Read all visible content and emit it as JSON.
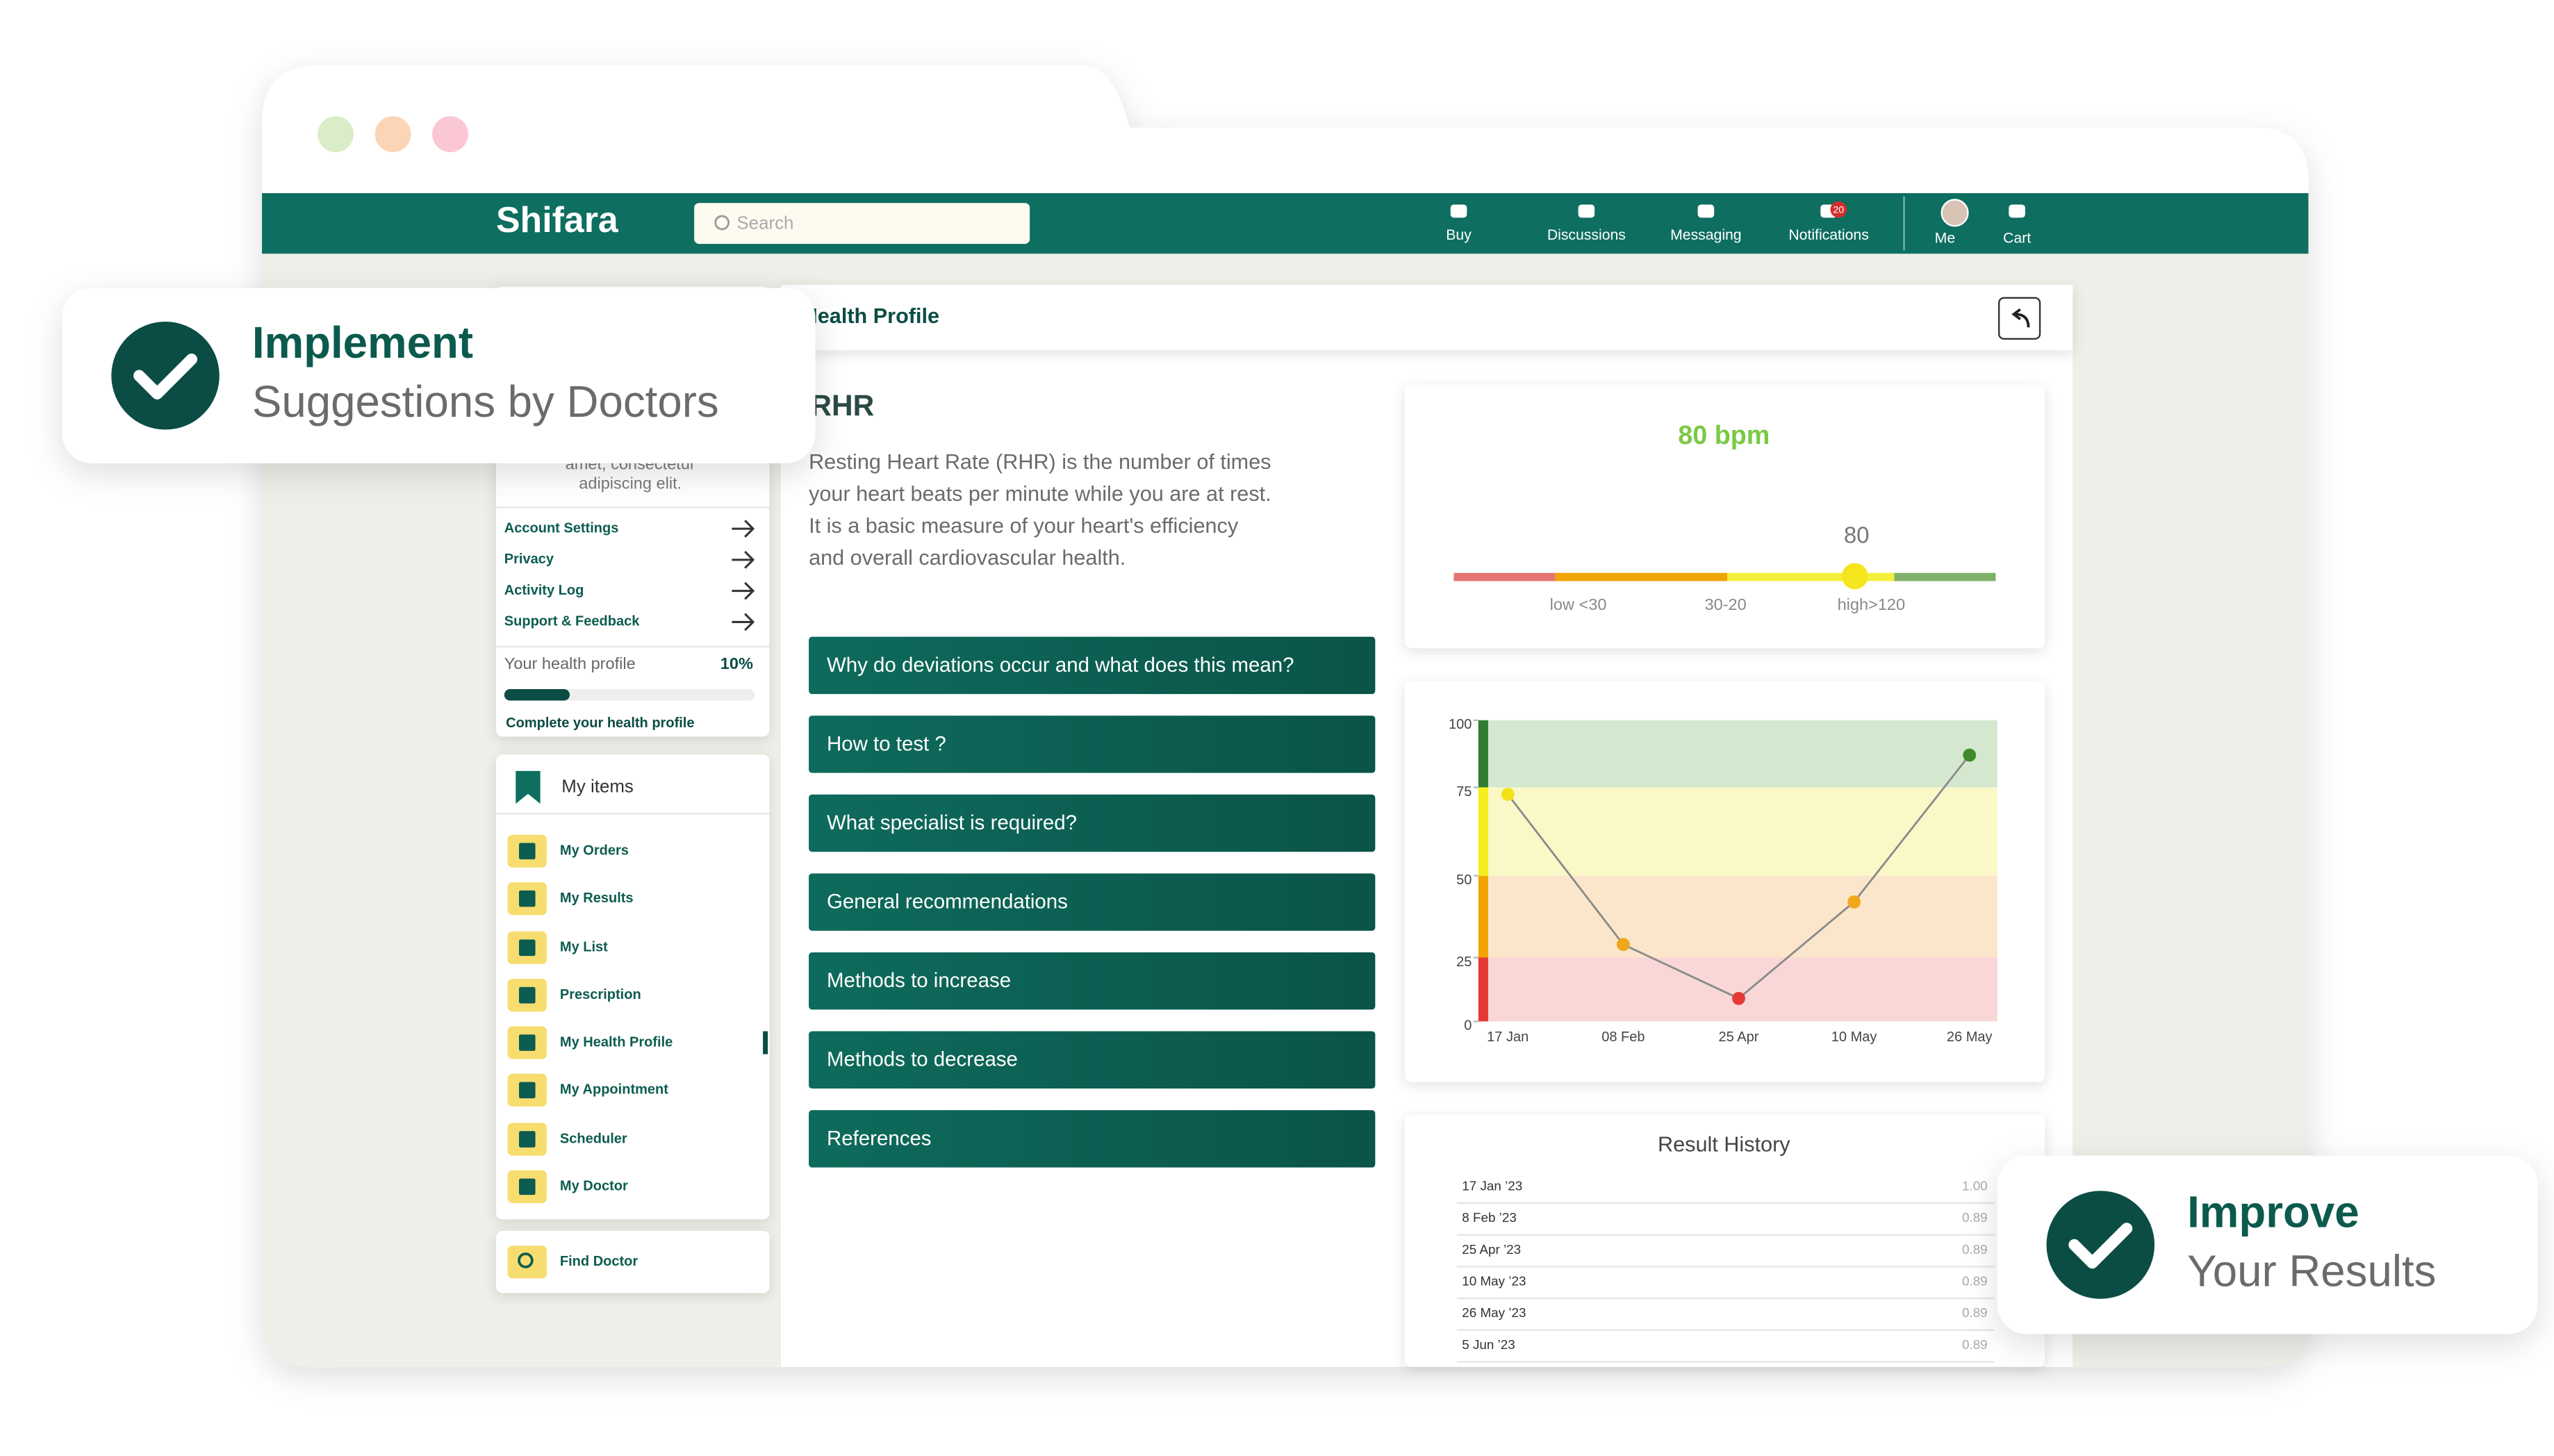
{
  "browser": {
    "logo": "Shifara",
    "search_placeholder": "Search",
    "nav": [
      "Buy",
      "Discussions",
      "Messaging",
      "Notifications",
      "Me",
      "Cart"
    ],
    "notification_count": "20"
  },
  "sidebar": {
    "intro_text": [
      "amet, consectetur",
      "adipiscing elit."
    ],
    "settings": [
      "Account Settings",
      "Privacy",
      "Activity Log",
      "Support & Feedback"
    ],
    "health_profile": {
      "label": "Your health profile",
      "percent": "10%",
      "action": "Complete your health profile"
    },
    "items_title": "My items",
    "items": [
      "My Orders",
      "My Results",
      "My List",
      "Prescription",
      "My Health Profile",
      "My Appointment",
      "Scheduler",
      "My Doctor"
    ],
    "find": "Find Doctor"
  },
  "main": {
    "page_title": "Health Profile",
    "metric": "RHR",
    "description": [
      "Resting Heart Rate (RHR) is the number of times",
      "your heart beats per minute while you are at rest.",
      "It is a basic measure of your heart's efficiency",
      "and overall cardiovascular health."
    ],
    "accordion": [
      "Why do deviations occur and what does this mean?",
      "How to test ?",
      "What specialist is required?",
      "General recommendations",
      "Methods to increase",
      "Methods to decrease",
      "References"
    ]
  },
  "gauge": {
    "reading": "80 bpm",
    "value": 80,
    "ranges": [
      "low <30",
      "30-20",
      "high>120"
    ]
  },
  "chart": {
    "type": "line",
    "x": [
      "17 Jan",
      "08 Feb",
      "25 Apr",
      "10 May",
      "26 May"
    ],
    "values": [
      73,
      29,
      9,
      42,
      87
    ],
    "point_colors": [
      "#f2e21a",
      "#f0a81a",
      "#e53935",
      "#f0a81a",
      "#3f8a2c"
    ],
    "line_color": "#8a8a8a",
    "ylim": [
      0,
      100
    ],
    "yticks": [
      0,
      25,
      50,
      75,
      100
    ]
  },
  "history": {
    "title": "Result History",
    "rows": [
      [
        "17 Jan ’23",
        "1.00"
      ],
      [
        "8 Feb ’23",
        "0.89"
      ],
      [
        "25 Apr ’23",
        "0.89"
      ],
      [
        "10 May ’23",
        "0.89"
      ],
      [
        "26 May ’23",
        "0.89"
      ],
      [
        "5 Jun ’23",
        "0.89"
      ]
    ]
  },
  "callouts": [
    {
      "title": "Implement",
      "subtitle": "Suggestions by Doctors"
    },
    {
      "title": "Improve",
      "subtitle": "Your Results"
    }
  ]
}
